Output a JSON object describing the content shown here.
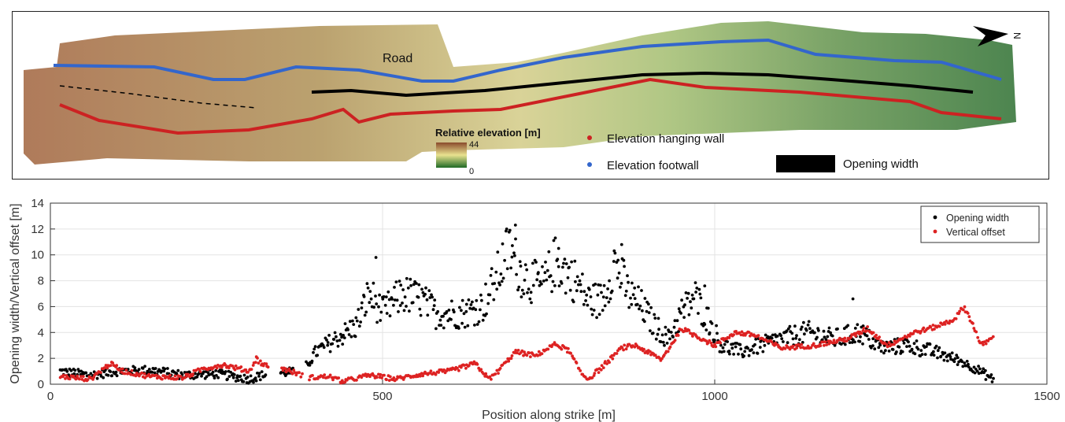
{
  "map_panel": {
    "road_label": "Road",
    "north_label": "N",
    "colorbar": {
      "title": "Relative elevation [m]",
      "max_label": "44",
      "min_label": "0"
    },
    "legend": {
      "hanging_wall": "Elevation hanging wall",
      "footwall": "Elevation footwall",
      "opening": "Opening width"
    },
    "colors": {
      "hanging_wall": "#cc2222",
      "footwall": "#3366cc",
      "opening": "#000000"
    }
  },
  "chart_data": {
    "type": "scatter",
    "xlabel": "Position along strike [m]",
    "ylabel": "Opening width/Vertical offset [m]",
    "xlim": [
      0,
      1500
    ],
    "ylim": [
      0,
      14
    ],
    "xticks": [
      0,
      500,
      1000,
      1500
    ],
    "yticks": [
      0,
      2,
      4,
      6,
      8,
      10,
      12,
      14
    ],
    "grid": true,
    "legend_position": "top-right",
    "series": [
      {
        "name": "Opening width",
        "color": "#000000",
        "profile": [
          [
            15,
            1.0
          ],
          [
            60,
            0.7
          ],
          [
            100,
            1.0
          ],
          [
            150,
            1.1
          ],
          [
            200,
            0.7
          ],
          [
            250,
            0.8
          ],
          [
            300,
            0.4
          ],
          [
            320,
            0.7
          ],
          [
            350,
            0.9
          ],
          [
            380,
            1.0
          ],
          [
            400,
            2.5
          ],
          [
            430,
            3.5
          ],
          [
            460,
            4.5
          ],
          [
            480,
            7.0
          ],
          [
            500,
            5.5
          ],
          [
            530,
            7.0
          ],
          [
            560,
            6.5
          ],
          [
            580,
            5.5
          ],
          [
            620,
            5.5
          ],
          [
            650,
            6.0
          ],
          [
            670,
            8.0
          ],
          [
            690,
            10.5
          ],
          [
            710,
            8.5
          ],
          [
            740,
            7.5
          ],
          [
            760,
            9.5
          ],
          [
            790,
            8.0
          ],
          [
            810,
            6.5
          ],
          [
            830,
            6.5
          ],
          [
            850,
            9.5
          ],
          [
            870,
            7.0
          ],
          [
            890,
            6.0
          ],
          [
            910,
            4.5
          ],
          [
            930,
            3.5
          ],
          [
            950,
            5.5
          ],
          [
            970,
            6.8
          ],
          [
            990,
            5.0
          ],
          [
            1010,
            3.0
          ],
          [
            1040,
            2.5
          ],
          [
            1070,
            3.0
          ],
          [
            1100,
            3.5
          ],
          [
            1140,
            4.0
          ],
          [
            1180,
            3.5
          ],
          [
            1220,
            4.0
          ],
          [
            1250,
            2.8
          ],
          [
            1290,
            3.0
          ],
          [
            1330,
            2.5
          ],
          [
            1370,
            1.8
          ],
          [
            1400,
            1.0
          ],
          [
            1420,
            0.3
          ]
        ],
        "gaps": [
          [
            325,
            345
          ],
          [
            365,
            385
          ]
        ],
        "visible_peaks": [
          [
            490,
            9.8
          ],
          [
            700,
            12.3
          ],
          [
            765,
            10.5
          ],
          [
            860,
            10.8
          ],
          [
            985,
            7.6
          ],
          [
            1208,
            6.6
          ]
        ]
      },
      {
        "name": "Vertical offset",
        "color": "#dd2222",
        "profile": [
          [
            15,
            0.6
          ],
          [
            60,
            0.4
          ],
          [
            90,
            1.6
          ],
          [
            110,
            1.0
          ],
          [
            150,
            0.6
          ],
          [
            200,
            0.5
          ],
          [
            230,
            1.2
          ],
          [
            260,
            1.5
          ],
          [
            300,
            1.0
          ],
          [
            310,
            2.0
          ],
          [
            320,
            1.5
          ],
          [
            350,
            1.2
          ],
          [
            390,
            0.5
          ],
          [
            420,
            0.6
          ],
          [
            440,
            0.2
          ],
          [
            480,
            0.7
          ],
          [
            520,
            0.4
          ],
          [
            560,
            0.8
          ],
          [
            580,
            0.9
          ],
          [
            600,
            1.0
          ],
          [
            640,
            1.6
          ],
          [
            660,
            0.4
          ],
          [
            670,
            0.8
          ],
          [
            700,
            2.5
          ],
          [
            730,
            2.2
          ],
          [
            760,
            3.1
          ],
          [
            780,
            2.6
          ],
          [
            800,
            0.8
          ],
          [
            810,
            0.4
          ],
          [
            830,
            1.3
          ],
          [
            860,
            2.8
          ],
          [
            880,
            3.0
          ],
          [
            920,
            1.9
          ],
          [
            950,
            4.3
          ],
          [
            970,
            3.8
          ],
          [
            1000,
            3.0
          ],
          [
            1030,
            4.0
          ],
          [
            1060,
            3.8
          ],
          [
            1100,
            2.8
          ],
          [
            1150,
            3.0
          ],
          [
            1200,
            3.5
          ],
          [
            1230,
            4.3
          ],
          [
            1260,
            3.0
          ],
          [
            1300,
            4.0
          ],
          [
            1330,
            4.4
          ],
          [
            1360,
            5.0
          ],
          [
            1375,
            6.0
          ],
          [
            1390,
            4.5
          ],
          [
            1400,
            3.0
          ],
          [
            1420,
            3.6
          ]
        ],
        "gaps": [
          [
            330,
            348
          ],
          [
            380,
            388
          ]
        ]
      }
    ]
  }
}
